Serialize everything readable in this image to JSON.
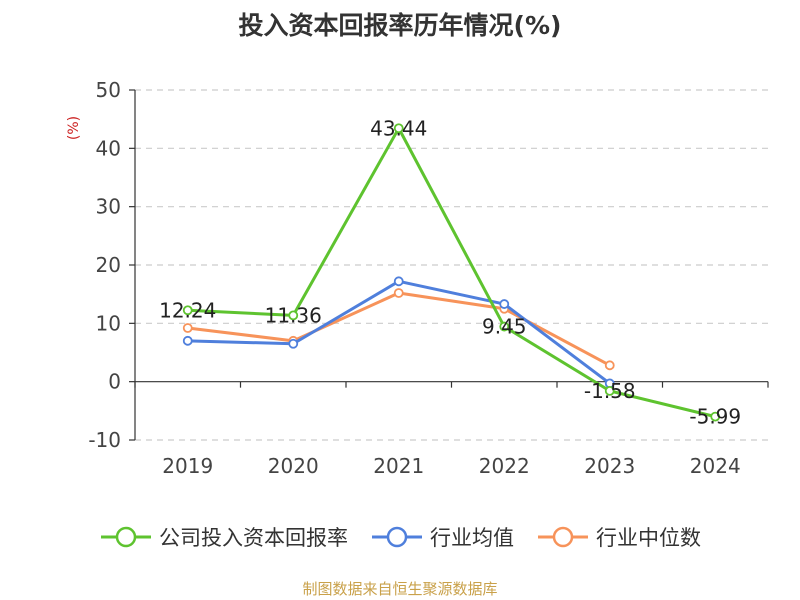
{
  "title": "投入资本回报率历年情况(%)",
  "source": "制图数据来自恒生聚源数据库",
  "chart_data": {
    "type": "line",
    "title": "投入资本回报率历年情况(%)",
    "ylabel": "(%)",
    "xlabel": "",
    "categories": [
      "2019",
      "2020",
      "2021",
      "2022",
      "2023",
      "2024"
    ],
    "ylim": [
      -10,
      50
    ],
    "yticks": [
      -10,
      0,
      10,
      20,
      30,
      40,
      50
    ],
    "grid": true,
    "legend_position": "bottom",
    "series": [
      {
        "name": "公司投入资本回报率",
        "color": "#5ec32f",
        "values": [
          12.24,
          11.36,
          43.44,
          9.45,
          -1.58,
          -5.99
        ],
        "labels": [
          "12.24",
          "11.36",
          "43.44",
          "9.45",
          "-1.58",
          "-5.99"
        ]
      },
      {
        "name": "行业均值",
        "color": "#4f7fdc",
        "values": [
          7.0,
          6.5,
          17.2,
          13.3,
          -0.3,
          null
        ]
      },
      {
        "name": "行业中位数",
        "color": "#f7935a",
        "values": [
          9.2,
          7.0,
          15.2,
          12.5,
          2.8,
          null
        ]
      }
    ]
  }
}
